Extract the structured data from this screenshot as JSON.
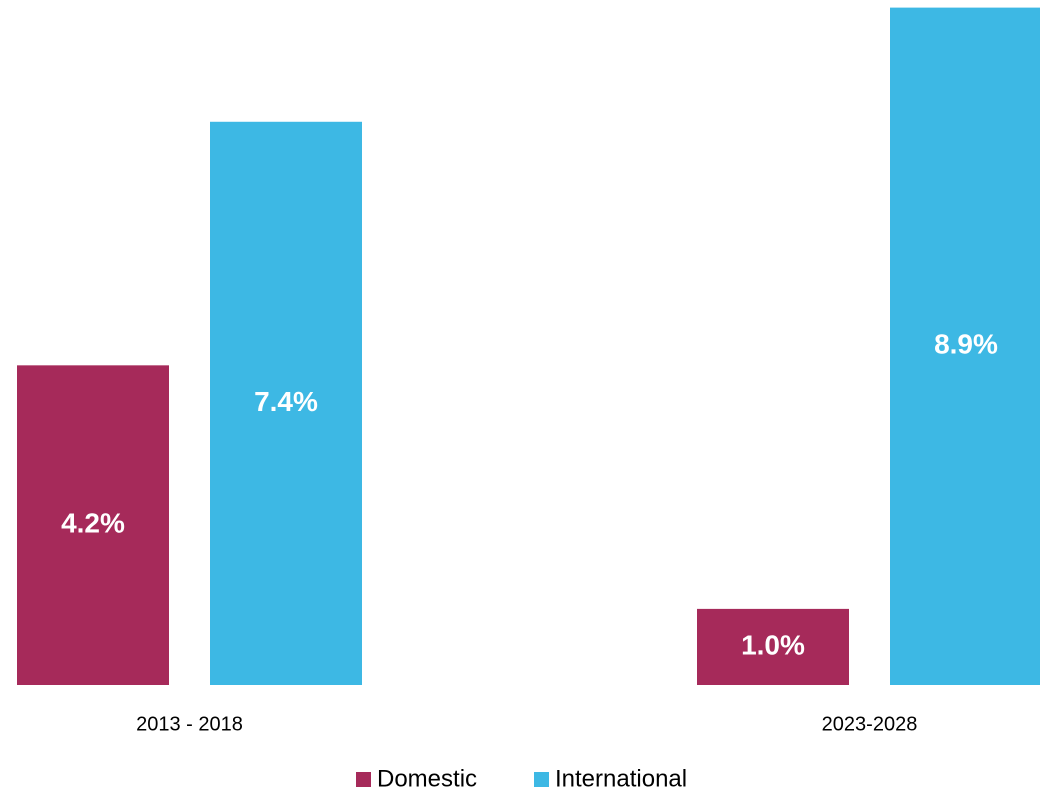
{
  "chart_data": {
    "type": "bar",
    "categories": [
      "2013 - 2018",
      "2023-2028"
    ],
    "series": [
      {
        "name": "Domestic",
        "color": "#a62a5a",
        "values": [
          4.2,
          1.0
        ],
        "value_labels": [
          "4.2%",
          "1.0%"
        ]
      },
      {
        "name": "International",
        "color": "#3db8e4",
        "values": [
          7.4,
          8.9
        ],
        "value_labels": [
          "7.4%",
          "8.9%"
        ]
      }
    ],
    "ylim": [
      0,
      9
    ]
  }
}
